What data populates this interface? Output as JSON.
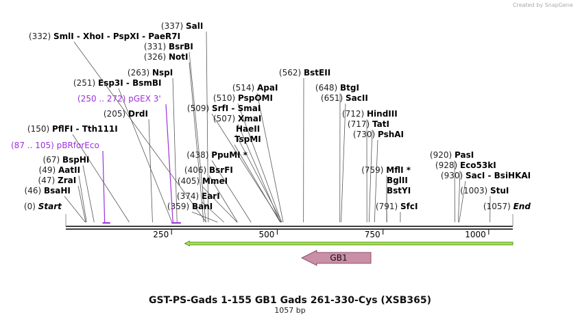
{
  "watermark": "Created by SnapGene",
  "title": "GST-PS-Gads 1-155 GB1 Gads 261-330-Cys (XSB365)",
  "length_label": "1057 bp",
  "length_bp": 1057,
  "ticks": [
    {
      "bp": 250,
      "label": "250"
    },
    {
      "bp": 500,
      "label": "500"
    },
    {
      "bp": 750,
      "label": "750"
    },
    {
      "bp": 1000,
      "label": "1000"
    }
  ],
  "colors": {
    "backbone": "#222222",
    "cut_line": "#555555",
    "primer": "#9b30d9",
    "orf_fill": "#a8e24a",
    "orf_edge": "#3a7a10",
    "feature_fill": "#c98fa6",
    "feature_edge": "#7a3550"
  },
  "features": [
    {
      "name": "GB1",
      "start": 556,
      "end": 716,
      "direction": "reverse"
    }
  ],
  "orf": {
    "start": 346,
    "end": 1057,
    "direction": "reverse"
  },
  "primers": [
    {
      "name": "pBRforEco",
      "range": "(87 .. 105)",
      "start": 87,
      "end": 105
    },
    {
      "name": "pGEX 3'",
      "range": "(250 .. 272)",
      "start": 250,
      "end": 272
    }
  ],
  "sites": [
    {
      "name": "Start",
      "pos": "(0)",
      "bp": 0,
      "italic": true
    },
    {
      "name": "BsaHI",
      "pos": "(46)",
      "bp": 46
    },
    {
      "name": "ZraI",
      "pos": "(47)",
      "bp": 47
    },
    {
      "name": "AatII",
      "pos": "(49)",
      "bp": 49
    },
    {
      "name": "BspHI",
      "pos": "(67)",
      "bp": 67
    },
    {
      "name": "PflFI  -  Tth111I",
      "pos": "(150)",
      "bp": 150
    },
    {
      "name": "DrdI",
      "pos": "(205)",
      "bp": 205
    },
    {
      "name": "Esp3I  -  BsmBI",
      "pos": "(251)",
      "bp": 251
    },
    {
      "name": "NspI",
      "pos": "(263)",
      "bp": 263
    },
    {
      "name": "NotI",
      "pos": "(326)",
      "bp": 326
    },
    {
      "name": "BsrBI",
      "pos": "(331)",
      "bp": 331
    },
    {
      "name": "SmlI  -  XhoI  -  PspXI  -  PaeR7I",
      "pos": "(332)",
      "bp": 332
    },
    {
      "name": "SalI",
      "pos": "(337)",
      "bp": 337
    },
    {
      "name": "BanI",
      "pos": "(359)",
      "bp": 359
    },
    {
      "name": "EarI",
      "pos": "(374)",
      "bp": 374
    },
    {
      "name": "MmeI",
      "pos": "(405)",
      "bp": 405
    },
    {
      "name": "BsrFI",
      "pos": "(406)",
      "bp": 406
    },
    {
      "name": "PpuMI *",
      "pos": "(438)",
      "bp": 438
    },
    {
      "name": "SrfI  -  SmaI",
      "pos": "(509)",
      "bp": 509
    },
    {
      "name": "XmaI",
      "pos": "(507)",
      "bp": 507
    },
    {
      "name": "PspOMI",
      "pos": "(510)",
      "bp": 510
    },
    {
      "name": "HaeII",
      "pos": "",
      "bp": 511
    },
    {
      "name": "TspMI",
      "pos": "",
      "bp": 507
    },
    {
      "name": "ApaI",
      "pos": "(514)",
      "bp": 514
    },
    {
      "name": "BstEII",
      "pos": "(562)",
      "bp": 562
    },
    {
      "name": "BtgI",
      "pos": "(648)",
      "bp": 648
    },
    {
      "name": "SacII",
      "pos": "(651)",
      "bp": 651
    },
    {
      "name": "HindIII",
      "pos": "(712)",
      "bp": 712
    },
    {
      "name": "TatI",
      "pos": "(717)",
      "bp": 717
    },
    {
      "name": "PshAI",
      "pos": "(730)",
      "bp": 730
    },
    {
      "name": "MflI *",
      "pos": "(759)",
      "bp": 759
    },
    {
      "name": "BglII",
      "pos": "",
      "bp": 759
    },
    {
      "name": "BstYI",
      "pos": "",
      "bp": 759
    },
    {
      "name": "SfcI",
      "pos": "(791)",
      "bp": 791
    },
    {
      "name": "PasI",
      "pos": "(920)",
      "bp": 920
    },
    {
      "name": "Eco53kI",
      "pos": "(928)",
      "bp": 928
    },
    {
      "name": "SacI  -  BsiHKAI",
      "pos": "(930)",
      "bp": 930
    },
    {
      "name": "StuI",
      "pos": "(1003)",
      "bp": 1003
    },
    {
      "name": "End",
      "pos": "(1057)",
      "bp": 1057,
      "italic": true
    }
  ]
}
